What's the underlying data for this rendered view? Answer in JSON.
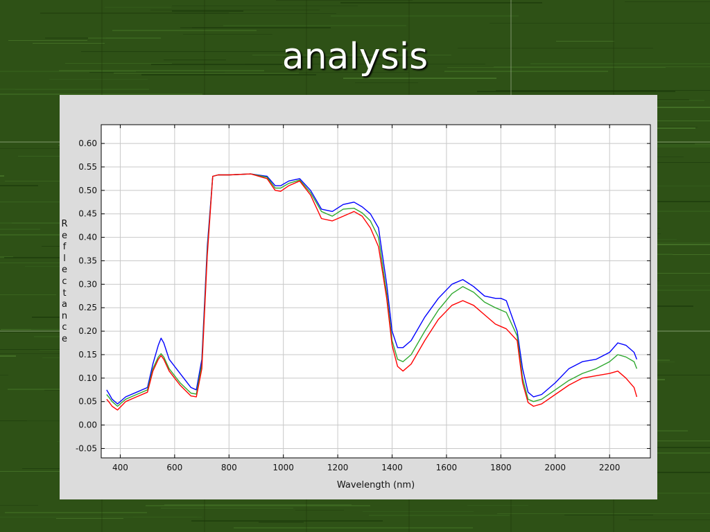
{
  "slide": {
    "title": "analysis"
  },
  "chart_data": {
    "type": "line",
    "title": "",
    "xlabel": "Wavelength (nm)",
    "ylabel": "Reflectance",
    "xlim": [
      330,
      2350
    ],
    "ylim": [
      -0.07,
      0.64
    ],
    "x_ticks": [
      400,
      600,
      800,
      1000,
      1200,
      1400,
      1600,
      1800,
      2000,
      2200
    ],
    "y_ticks": [
      -0.05,
      0.0,
      0.05,
      0.1,
      0.15,
      0.2,
      0.25,
      0.3,
      0.35,
      0.4,
      0.45,
      0.5,
      0.55,
      0.6
    ],
    "y_tick_labels": [
      "-0.05",
      "0.00",
      "0.05",
      "0.10",
      "0.15",
      "0.20",
      "0.25",
      "0.30",
      "0.35",
      "0.40",
      "0.45",
      "0.50",
      "0.55",
      "0.60"
    ],
    "grid": true,
    "series": [
      {
        "color": "#0000ff",
        "x": [
          350,
          360,
          370,
          390,
          420,
          460,
          500,
          520,
          540,
          550,
          560,
          580,
          620,
          660,
          680,
          700,
          720,
          740,
          760,
          800,
          880,
          940,
          970,
          990,
          1020,
          1060,
          1100,
          1140,
          1180,
          1220,
          1260,
          1290,
          1320,
          1350,
          1380,
          1400,
          1420,
          1440,
          1470,
          1520,
          1570,
          1620,
          1660,
          1700,
          1740,
          1780,
          1800,
          1820,
          1860,
          1880,
          1900,
          1920,
          1950,
          2000,
          2050,
          2100,
          2150,
          2200,
          2230,
          2260,
          2290,
          2300
        ],
        "y": [
          0.075,
          0.065,
          0.055,
          0.045,
          0.06,
          0.07,
          0.08,
          0.13,
          0.17,
          0.185,
          0.175,
          0.14,
          0.11,
          0.08,
          0.075,
          0.14,
          0.38,
          0.53,
          0.533,
          0.533,
          0.535,
          0.53,
          0.51,
          0.51,
          0.52,
          0.525,
          0.5,
          0.46,
          0.455,
          0.47,
          0.475,
          0.465,
          0.45,
          0.42,
          0.3,
          0.2,
          0.165,
          0.165,
          0.18,
          0.23,
          0.27,
          0.3,
          0.31,
          0.295,
          0.275,
          0.27,
          0.27,
          0.265,
          0.2,
          0.12,
          0.07,
          0.06,
          0.065,
          0.09,
          0.12,
          0.135,
          0.14,
          0.155,
          0.175,
          0.17,
          0.155,
          0.14
        ]
      },
      {
        "color": "#2ea82e",
        "x": [
          350,
          360,
          370,
          390,
          420,
          460,
          500,
          520,
          540,
          550,
          560,
          580,
          620,
          660,
          680,
          700,
          720,
          740,
          760,
          800,
          880,
          940,
          970,
          990,
          1020,
          1060,
          1100,
          1140,
          1180,
          1220,
          1260,
          1290,
          1320,
          1350,
          1380,
          1400,
          1420,
          1440,
          1470,
          1520,
          1570,
          1620,
          1660,
          1700,
          1740,
          1780,
          1800,
          1820,
          1860,
          1880,
          1900,
          1920,
          1950,
          2000,
          2050,
          2100,
          2150,
          2200,
          2230,
          2260,
          2290,
          2300
        ],
        "y": [
          0.065,
          0.058,
          0.05,
          0.04,
          0.055,
          0.065,
          0.075,
          0.12,
          0.145,
          0.152,
          0.145,
          0.12,
          0.09,
          0.068,
          0.066,
          0.13,
          0.37,
          0.53,
          0.533,
          0.533,
          0.535,
          0.528,
          0.505,
          0.505,
          0.515,
          0.522,
          0.495,
          0.455,
          0.445,
          0.46,
          0.462,
          0.452,
          0.435,
          0.4,
          0.28,
          0.18,
          0.14,
          0.135,
          0.15,
          0.2,
          0.245,
          0.28,
          0.295,
          0.283,
          0.262,
          0.25,
          0.245,
          0.24,
          0.19,
          0.1,
          0.055,
          0.05,
          0.055,
          0.075,
          0.095,
          0.11,
          0.12,
          0.135,
          0.15,
          0.145,
          0.135,
          0.12
        ]
      },
      {
        "color": "#ff0000",
        "x": [
          350,
          360,
          370,
          390,
          420,
          460,
          500,
          520,
          540,
          550,
          560,
          580,
          620,
          660,
          680,
          700,
          720,
          740,
          760,
          800,
          880,
          940,
          970,
          990,
          1020,
          1060,
          1100,
          1140,
          1180,
          1220,
          1260,
          1290,
          1320,
          1350,
          1380,
          1400,
          1420,
          1440,
          1470,
          1520,
          1570,
          1620,
          1660,
          1700,
          1740,
          1780,
          1800,
          1820,
          1860,
          1880,
          1900,
          1920,
          1950,
          2000,
          2050,
          2100,
          2150,
          2200,
          2230,
          2260,
          2290,
          2300
        ],
        "y": [
          0.055,
          0.048,
          0.04,
          0.032,
          0.05,
          0.06,
          0.07,
          0.115,
          0.14,
          0.148,
          0.14,
          0.115,
          0.085,
          0.062,
          0.06,
          0.12,
          0.36,
          0.53,
          0.533,
          0.533,
          0.535,
          0.525,
          0.5,
          0.498,
          0.51,
          0.52,
          0.49,
          0.44,
          0.435,
          0.445,
          0.455,
          0.445,
          0.42,
          0.38,
          0.27,
          0.17,
          0.125,
          0.115,
          0.13,
          0.18,
          0.225,
          0.255,
          0.265,
          0.255,
          0.235,
          0.215,
          0.21,
          0.205,
          0.18,
          0.09,
          0.048,
          0.04,
          0.045,
          0.065,
          0.085,
          0.1,
          0.105,
          0.11,
          0.115,
          0.1,
          0.08,
          0.06
        ]
      }
    ]
  }
}
